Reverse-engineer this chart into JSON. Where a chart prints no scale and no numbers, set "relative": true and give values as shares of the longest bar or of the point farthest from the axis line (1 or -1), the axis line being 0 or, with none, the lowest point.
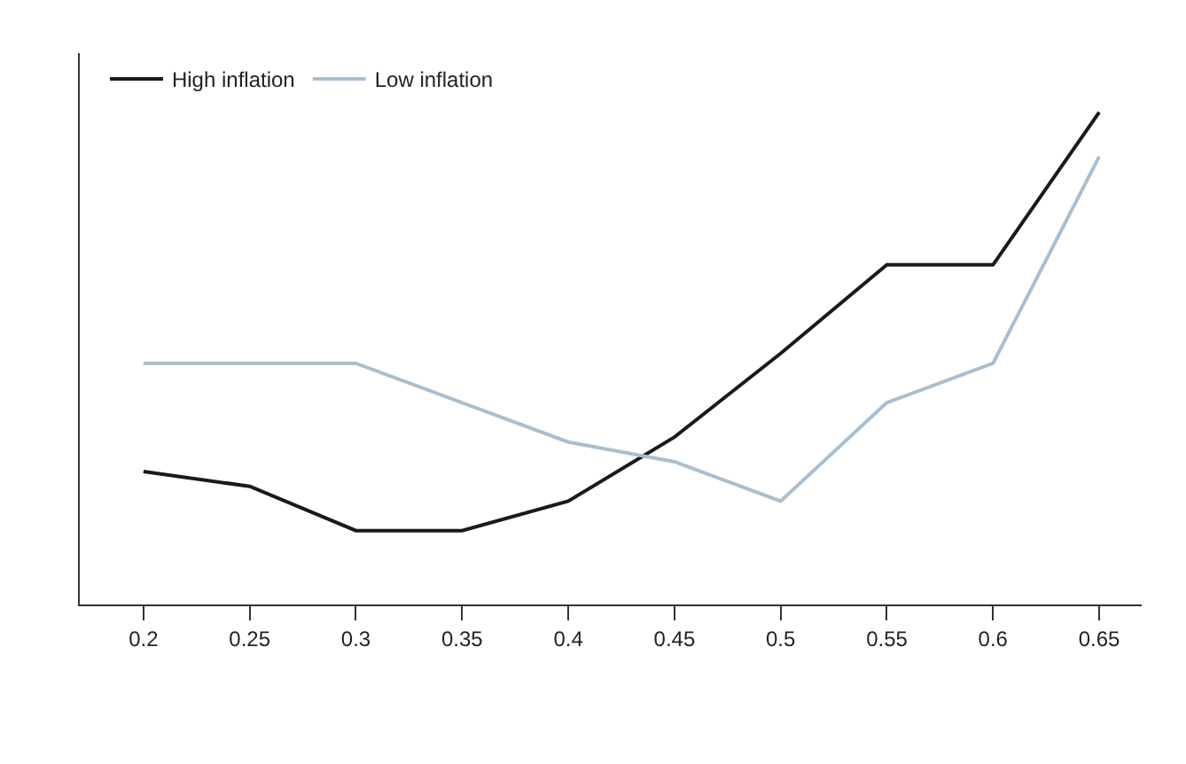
{
  "chart_data": {
    "type": "line",
    "relative": true,
    "categories": [
      "0.2",
      "0.25",
      "0.3",
      "0.35",
      "0.4",
      "0.45",
      "0.5",
      "0.55",
      "0.6",
      "0.65"
    ],
    "series": [
      {
        "name": "High inflation",
        "color": "#1a1a1a",
        "values": [
          0.27,
          0.24,
          0.15,
          0.15,
          0.21,
          0.34,
          0.51,
          0.69,
          0.69,
          1
        ]
      },
      {
        "name": "Low inflation",
        "color": "#a9bfd0",
        "values": [
          0.49,
          0.49,
          0.49,
          0.41,
          0.33,
          0.29,
          0.21,
          0.41,
          0.49,
          0.91
        ]
      }
    ],
    "legend": "top left",
    "marker": "none",
    "line_style": "solid"
  }
}
